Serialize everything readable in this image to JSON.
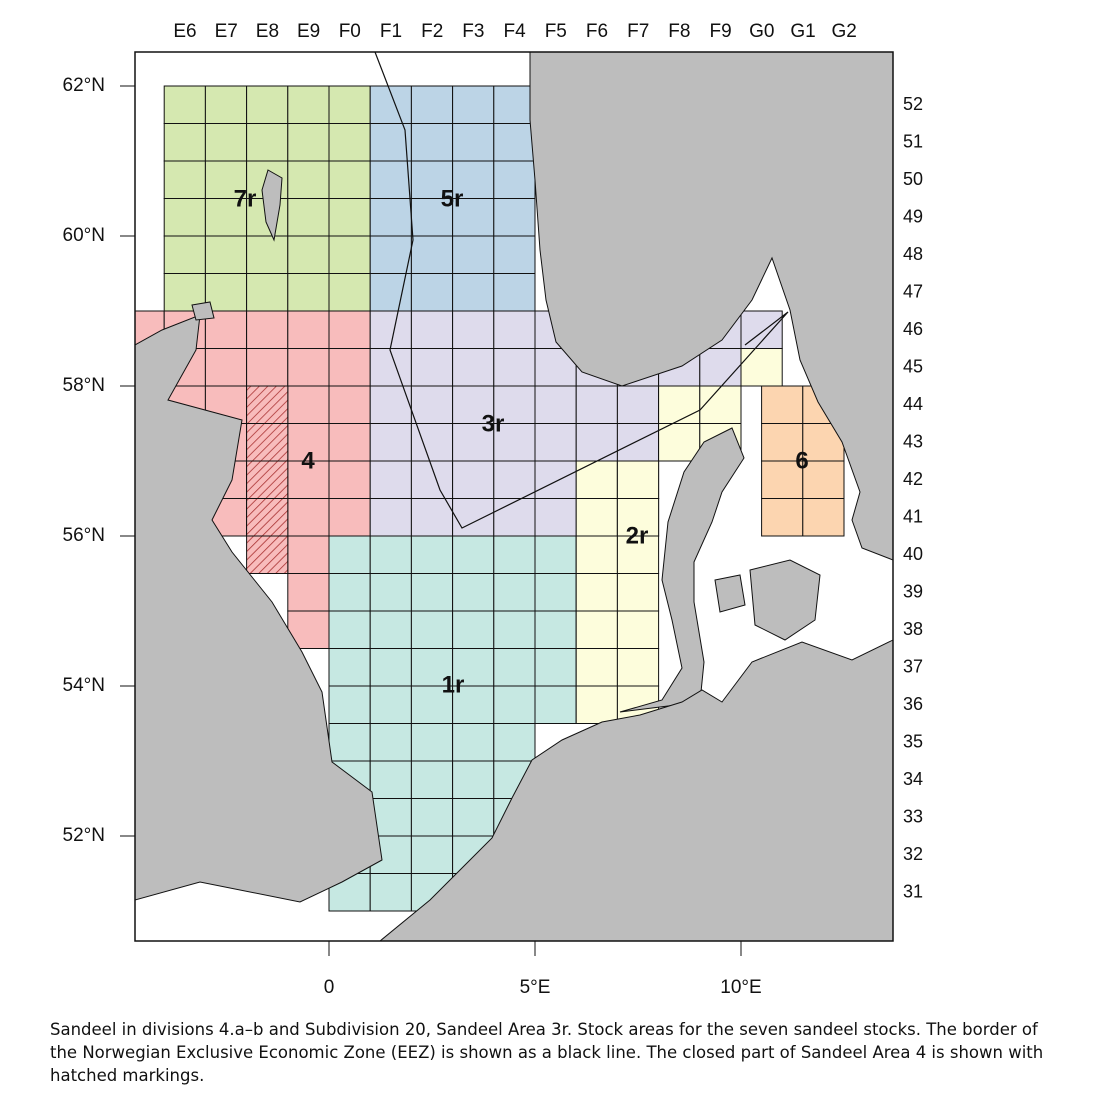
{
  "columns": [
    "E6",
    "E7",
    "E8",
    "E9",
    "F0",
    "F1",
    "F2",
    "F3",
    "F4",
    "F5",
    "F6",
    "F7",
    "F8",
    "F9",
    "G0",
    "G1",
    "G2"
  ],
  "rows": [
    "52",
    "51",
    "50",
    "49",
    "48",
    "47",
    "46",
    "45",
    "44",
    "43",
    "42",
    "41",
    "40",
    "39",
    "38",
    "37",
    "36",
    "35",
    "34",
    "33",
    "32",
    "31"
  ],
  "latitude_labels": [
    "62°N",
    "60°N",
    "58°N",
    "56°N",
    "54°N",
    "52°N"
  ],
  "longitude_labels": [
    "0",
    "5°E",
    "10°E"
  ],
  "areas": [
    "7r",
    "5r",
    "3r",
    "4",
    "6",
    "2r",
    "1r"
  ],
  "caption": "Sandeel in divisions 4.a–b and Subdivision 20, Sandeel Area 3r. Stock areas for the seven sandeel stocks. The border of the Norwegian Exclusive Economic Zone (EEZ) is shown as a black line. The closed part of Sandeel Area 4 is shown with hatched markings."
}
